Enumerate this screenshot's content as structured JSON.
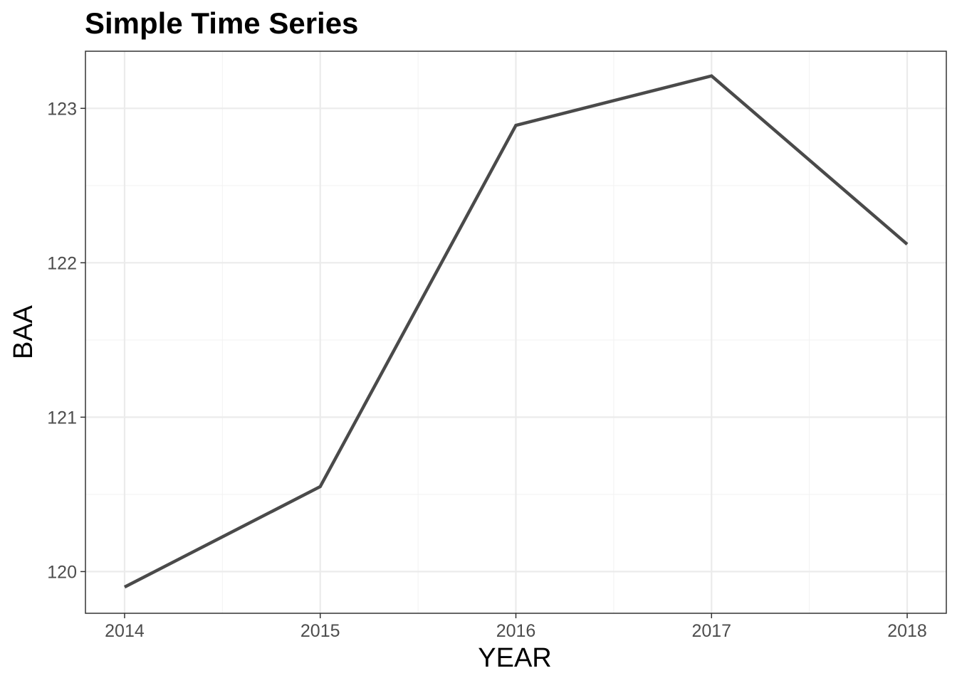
{
  "chart_data": {
    "type": "line",
    "title": "Simple Time Series",
    "xlabel": "YEAR",
    "ylabel": "BAA",
    "x": [
      2014,
      2015,
      2016,
      2017,
      2018
    ],
    "series": [
      {
        "values": [
          119.9,
          120.55,
          122.89,
          123.21,
          122.12
        ]
      }
    ],
    "xticks": [
      "2014",
      "2015",
      "2016",
      "2017",
      "2018"
    ],
    "yticks": [
      "120",
      "121",
      "122",
      "123"
    ],
    "xlim": [
      2013.8,
      2018.2
    ],
    "ylim": [
      119.73,
      123.37
    ],
    "grid": true,
    "line_color": "#4a4a4a"
  }
}
